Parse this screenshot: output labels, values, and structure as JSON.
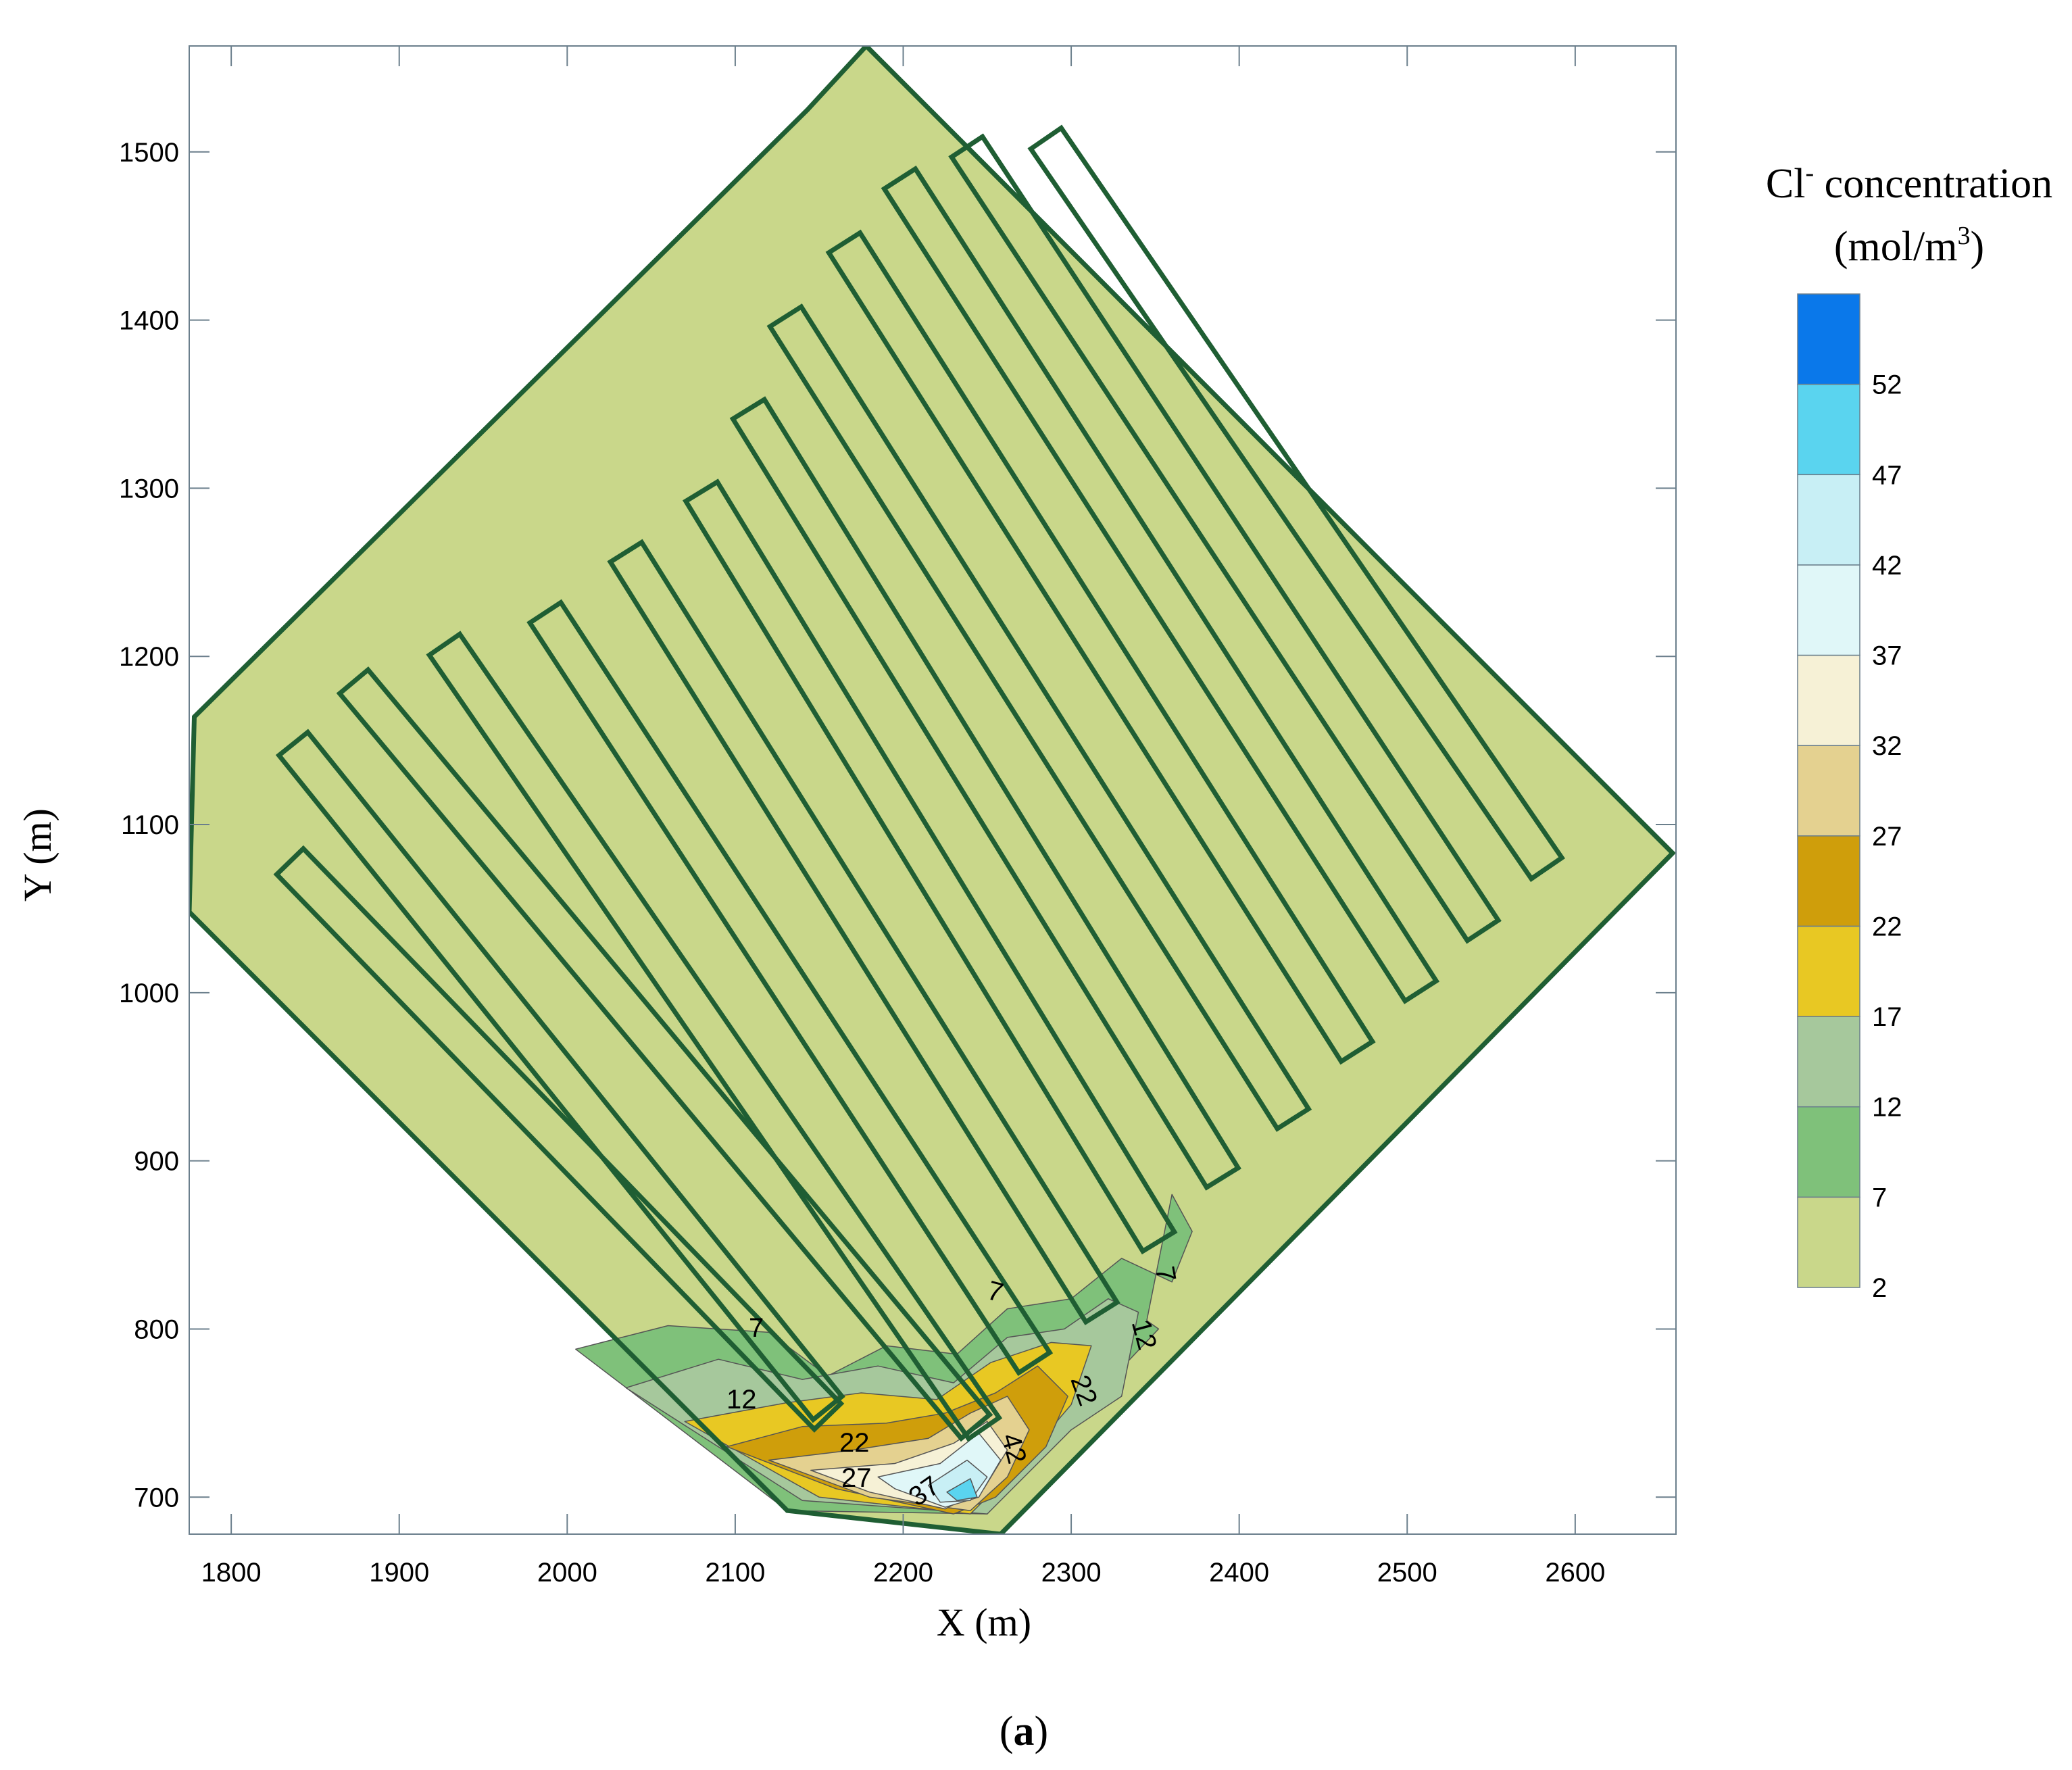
{
  "chart_data": {
    "type": "heatmap",
    "subtype": "filled-contour-map",
    "xlabel": "X (m)",
    "ylabel": "Y (m)",
    "xlim": [
      1775,
      2660
    ],
    "ylim": [
      678,
      1563
    ],
    "xticks": [
      1800,
      1900,
      2000,
      2100,
      2200,
      2300,
      2400,
      2500,
      2600
    ],
    "yticks": [
      700,
      800,
      900,
      1000,
      1100,
      1200,
      1300,
      1400,
      1500
    ],
    "grid": false,
    "colorbar": {
      "title_main": "Cl",
      "title_sup": "-",
      "title_rest": " concentration",
      "unit_main": "(mol/m",
      "unit_sup": "3",
      "unit_close": ")",
      "levels": [
        2,
        7,
        12,
        17,
        22,
        27,
        32,
        37,
        42,
        47,
        52
      ],
      "colors": [
        "#c9d78a",
        "#7fc17a",
        "#a6c89c",
        "#e8c823",
        "#cf9e0b",
        "#e4d190",
        "#f6f1d6",
        "#e0f7f8",
        "#c8eff5",
        "#5ad4ef",
        "#0a78ea"
      ]
    },
    "contour_labels": [
      "7",
      "12",
      "22",
      "27",
      "37",
      "42",
      "22",
      "12",
      "7",
      "7"
    ],
    "domain_boundary": [
      [
        1778,
        1164
      ],
      [
        1775,
        1048
      ],
      [
        2131,
        692
      ],
      [
        2258,
        678
      ],
      [
        2658,
        1083
      ],
      [
        2178,
        1563
      ],
      [
        2143,
        1525
      ]
    ],
    "strips": [
      {
        "start": [
          1835,
          1078
        ],
        "end": [
          2155,
          748
        ]
      },
      {
        "start": [
          1837,
          1148
        ],
        "end": [
          2155,
          753
        ]
      },
      {
        "start": [
          1873,
          1185
        ],
        "end": [
          2243,
          742
        ]
      },
      {
        "start": [
          1927,
          1207
        ],
        "end": [
          2248,
          741
        ]
      },
      {
        "start": [
          1987,
          1226
        ],
        "end": [
          2278,
          780
        ]
      },
      {
        "start": [
          2035,
          1262
        ],
        "end": [
          2318,
          810
        ]
      },
      {
        "start": [
          2080,
          1298
        ],
        "end": [
          2352,
          852
        ]
      },
      {
        "start": [
          2108,
          1347
        ],
        "end": [
          2390,
          890
        ]
      },
      {
        "start": [
          2130,
          1402
        ],
        "end": [
          2432,
          925
        ]
      },
      {
        "start": [
          2165,
          1446
        ],
        "end": [
          2470,
          965
        ]
      },
      {
        "start": [
          2198,
          1484
        ],
        "end": [
          2508,
          1001
        ]
      },
      {
        "start": [
          2238,
          1503
        ],
        "end": [
          2545,
          1037
        ]
      },
      {
        "start": [
          2285,
          1508
        ],
        "end": [
          2583,
          1074
        ]
      }
    ],
    "strip_half_width": 11,
    "plume": [
      {
        "value": 7,
        "points": [
          [
            2005,
            788
          ],
          [
            2060,
            802
          ],
          [
            2120,
            798
          ],
          [
            2155,
            772
          ],
          [
            2190,
            790
          ],
          [
            2232,
            785
          ],
          [
            2262,
            812
          ],
          [
            2300,
            818
          ],
          [
            2330,
            842
          ],
          [
            2360,
            828
          ],
          [
            2372,
            858
          ],
          [
            2360,
            880
          ],
          [
            2345,
            805
          ],
          [
            2352,
            800
          ],
          [
            2300,
            745
          ],
          [
            2250,
            690
          ],
          [
            2131,
            692
          ]
        ]
      },
      {
        "value": 12,
        "points": [
          [
            2035,
            765
          ],
          [
            2090,
            782
          ],
          [
            2140,
            770
          ],
          [
            2185,
            778
          ],
          [
            2230,
            768
          ],
          [
            2262,
            795
          ],
          [
            2296,
            800
          ],
          [
            2322,
            818
          ],
          [
            2340,
            810
          ],
          [
            2330,
            760
          ],
          [
            2300,
            740
          ],
          [
            2250,
            690
          ],
          [
            2140,
            698
          ]
        ]
      },
      {
        "value": 17,
        "points": [
          [
            2070,
            745
          ],
          [
            2130,
            756
          ],
          [
            2175,
            762
          ],
          [
            2220,
            758
          ],
          [
            2252,
            780
          ],
          [
            2288,
            792
          ],
          [
            2312,
            790
          ],
          [
            2300,
            755
          ],
          [
            2270,
            720
          ],
          [
            2240,
            690
          ],
          [
            2150,
            700
          ]
        ]
      },
      {
        "value": 22,
        "points": [
          [
            2095,
            730
          ],
          [
            2140,
            742
          ],
          [
            2190,
            744
          ],
          [
            2225,
            750
          ],
          [
            2255,
            762
          ],
          [
            2280,
            778
          ],
          [
            2298,
            760
          ],
          [
            2285,
            730
          ],
          [
            2255,
            700
          ],
          [
            2230,
            690
          ],
          [
            2160,
            705
          ]
        ]
      },
      {
        "value": 27,
        "points": [
          [
            2120,
            722
          ],
          [
            2170,
            728
          ],
          [
            2215,
            735
          ],
          [
            2240,
            750
          ],
          [
            2262,
            760
          ],
          [
            2275,
            740
          ],
          [
            2262,
            712
          ],
          [
            2240,
            692
          ],
          [
            2180,
            700
          ]
        ]
      },
      {
        "value": 32,
        "points": [
          [
            2145,
            716
          ],
          [
            2195,
            720
          ],
          [
            2230,
            732
          ],
          [
            2250,
            745
          ],
          [
            2262,
            728
          ],
          [
            2248,
            705
          ],
          [
            2225,
            693
          ],
          [
            2180,
            703
          ]
        ]
      },
      {
        "value": 37,
        "points": [
          [
            2185,
            712
          ],
          [
            2222,
            720
          ],
          [
            2245,
            738
          ],
          [
            2258,
            722
          ],
          [
            2245,
            700
          ],
          [
            2225,
            694
          ],
          [
            2195,
            705
          ]
        ]
      },
      {
        "value": 42,
        "points": [
          [
            2215,
            707
          ],
          [
            2238,
            722
          ],
          [
            2250,
            712
          ],
          [
            2240,
            698
          ],
          [
            2222,
            697
          ]
        ]
      },
      {
        "value": 47,
        "points": [
          [
            2226,
            703
          ],
          [
            2240,
            711
          ],
          [
            2244,
            700
          ],
          [
            2232,
            698
          ]
        ]
      }
    ],
    "sub_label": "a"
  }
}
